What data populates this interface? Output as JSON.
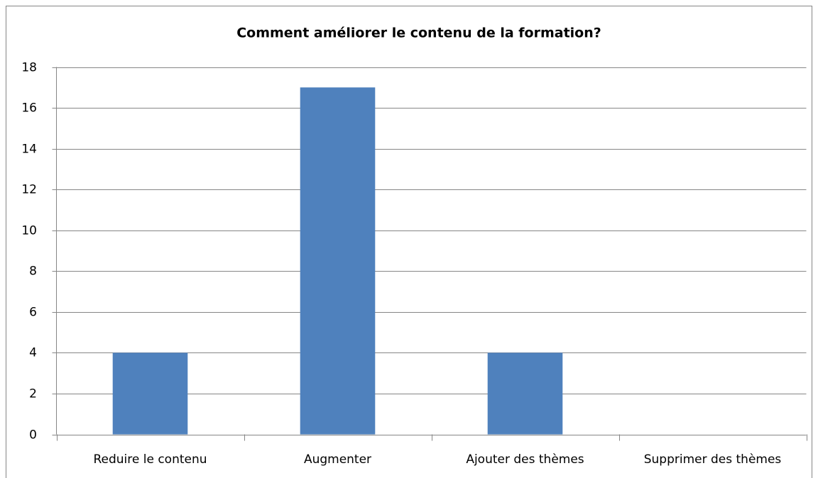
{
  "chart_data": {
    "type": "bar",
    "title": "Comment améliorer le contenu de la formation?",
    "categories": [
      "Reduire le contenu",
      "Augmenter",
      "Ajouter des thèmes",
      "Supprimer des thèmes"
    ],
    "values": [
      4,
      17,
      4,
      0
    ],
    "color": "#4f81bd",
    "ylim": [
      0,
      18
    ],
    "yticks": [
      0,
      2,
      4,
      6,
      8,
      10,
      12,
      14,
      16,
      18
    ],
    "grid": true
  }
}
